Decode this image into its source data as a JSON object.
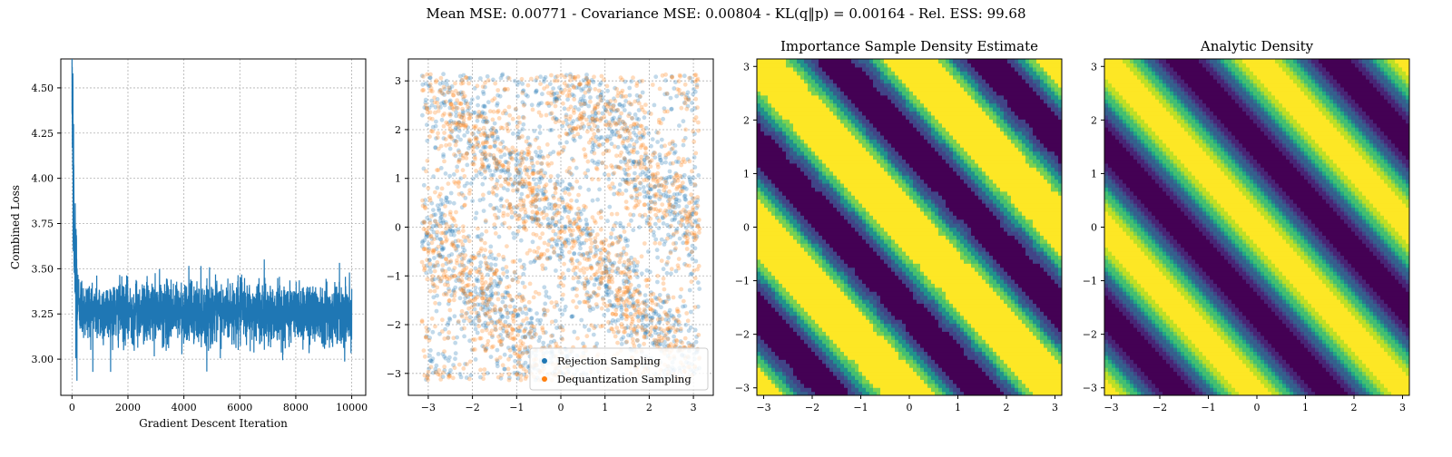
{
  "figure": {
    "suptitle": "Mean MSE: 0.00771 - Covariance MSE: 0.00804 - KL(q‖p) = 0.00164 - Rel. ESS: 99.68"
  },
  "colors": {
    "loss_line": "#1f77b4",
    "rejection": "#1f77b4",
    "dequantization": "#ff7f0e",
    "viridis_levels": [
      "#440154",
      "#482475",
      "#414487",
      "#355f8d",
      "#2a788e",
      "#21918c",
      "#22a884",
      "#44bf70",
      "#7ad151",
      "#bddf26",
      "#fde725"
    ]
  },
  "chart_data": [
    {
      "id": "loss",
      "type": "line",
      "title": "",
      "xlabel": "Gradient Descent Iteration",
      "ylabel": "Combined Loss",
      "xlim": [
        -400,
        10500
      ],
      "ylim": [
        2.8,
        4.66
      ],
      "xticks": [
        0,
        2000,
        4000,
        6000,
        8000,
        10000
      ],
      "xtick_labels": [
        "0",
        "2000",
        "4000",
        "6000",
        "8000",
        "10000"
      ],
      "yticks": [
        3.0,
        3.25,
        3.5,
        3.75,
        4.0,
        4.25,
        4.5
      ],
      "ytick_labels": [
        "3.00",
        "3.25",
        "3.50",
        "3.75",
        "4.00",
        "4.25",
        "4.50"
      ],
      "grid": true,
      "series": [
        {
          "x": [
            0,
            20,
            40,
            60,
            80,
            100,
            150,
            200,
            300,
            400,
            600,
            800,
            1000,
            1500,
            2000,
            2500,
            3000,
            3500,
            4000,
            4500,
            5000,
            5500,
            6000,
            6500,
            7000,
            7500,
            8000,
            8500,
            9000,
            9500,
            10000
          ],
          "y": [
            4.6,
            4.4,
            4.05,
            3.85,
            3.62,
            3.55,
            3.45,
            3.35,
            3.3,
            3.28,
            3.27,
            3.27,
            3.26,
            3.26,
            3.26,
            3.26,
            3.26,
            3.26,
            3.26,
            3.26,
            3.26,
            3.26,
            3.26,
            3.26,
            3.26,
            3.26,
            3.26,
            3.26,
            3.26,
            3.26,
            3.26
          ],
          "noise_band": [
            3.05,
            3.55
          ]
        }
      ]
    },
    {
      "id": "samples",
      "type": "scatter",
      "title": "",
      "xlim": [
        -3.45,
        3.45
      ],
      "ylim": [
        -3.45,
        3.45
      ],
      "xticks": [
        -3,
        -2,
        -1,
        0,
        1,
        2,
        3
      ],
      "xtick_labels": [
        "−3",
        "−2",
        "−1",
        "0",
        "1",
        "2",
        "3"
      ],
      "yticks": [
        -3,
        -2,
        -1,
        0,
        1,
        2,
        3
      ],
      "ytick_labels": [
        "−3",
        "−2",
        "−1",
        "0",
        "1",
        "2",
        "3"
      ],
      "grid": true,
      "legend_placement": "lower-right",
      "series": [
        {
          "name": "Rejection Sampling",
          "color": "#1f77b4",
          "domain": [
            -3.14,
            3.14
          ],
          "density": "cos2(x+y)"
        },
        {
          "name": "Dequantization Sampling",
          "color": "#ff7f0e",
          "domain": [
            -3.14,
            3.14
          ],
          "density": "cos2(x+y)"
        }
      ]
    },
    {
      "id": "importance",
      "type": "heatmap",
      "title": "Importance Sample Density Estimate",
      "xlim": [
        -3.14,
        3.14
      ],
      "ylim": [
        -3.14,
        3.14
      ],
      "xticks": [
        -3,
        -2,
        -1,
        0,
        1,
        2,
        3
      ],
      "xtick_labels": [
        "−3",
        "−2",
        "−1",
        "0",
        "1",
        "2",
        "3"
      ],
      "yticks": [
        -3,
        -2,
        -1,
        0,
        1,
        2,
        3
      ],
      "ytick_labels": [
        "−3",
        "−2",
        "−1",
        "0",
        "1",
        "2",
        "3"
      ],
      "density": "cos2(x+y)",
      "levels": 7
    },
    {
      "id": "analytic",
      "type": "heatmap",
      "title": "Analytic Density",
      "xlim": [
        -3.14,
        3.14
      ],
      "ylim": [
        -3.14,
        3.14
      ],
      "xticks": [
        -3,
        -2,
        -1,
        0,
        1,
        2,
        3
      ],
      "xtick_labels": [
        "−3",
        "−2",
        "−1",
        "0",
        "1",
        "2",
        "3"
      ],
      "yticks": [
        -3,
        -2,
        -1,
        0,
        1,
        2,
        3
      ],
      "ytick_labels": [
        "−3",
        "−2",
        "−1",
        "0",
        "1",
        "2",
        "3"
      ],
      "density": "cos2(x+y)",
      "levels": 10
    }
  ]
}
